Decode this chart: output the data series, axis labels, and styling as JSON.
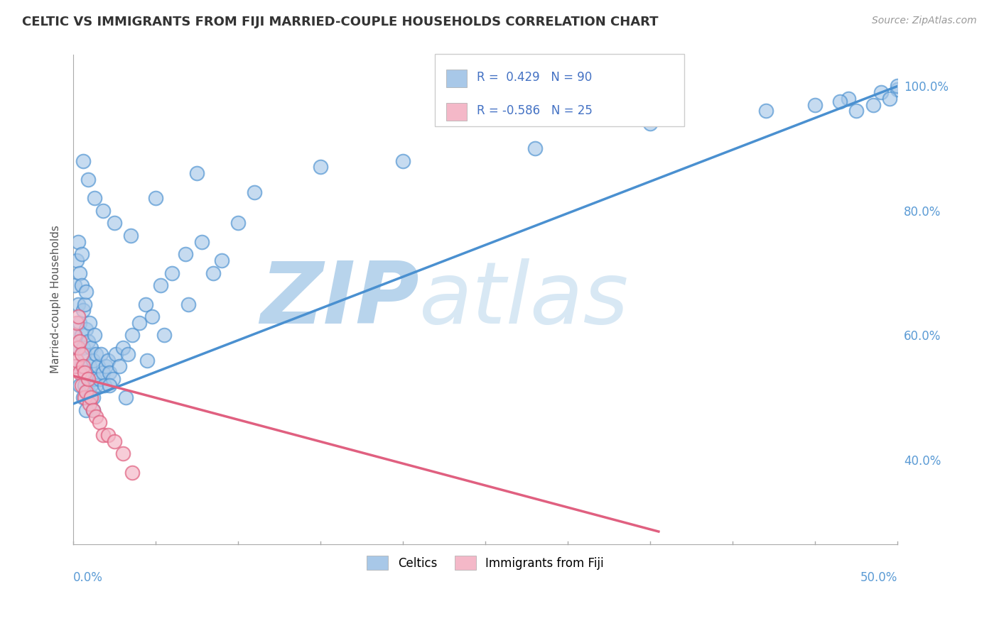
{
  "title": "CELTIC VS IMMIGRANTS FROM FIJI MARRIED-COUPLE HOUSEHOLDS CORRELATION CHART",
  "source": "Source: ZipAtlas.com",
  "ylabel": "Married-couple Households",
  "ylabel_right_ticks": [
    "100.0%",
    "80.0%",
    "60.0%",
    "40.0%"
  ],
  "ylabel_right_vals": [
    1.0,
    0.8,
    0.6,
    0.4
  ],
  "celtics_color": "#a8c8e8",
  "fiji_color": "#f4b8c8",
  "line_celtics_color": "#4a90d0",
  "line_fiji_color": "#e06080",
  "watermark_zip": "ZIP",
  "watermark_atlas": "atlas",
  "watermark_color": "#dce8f4",
  "celtics_scatter_x": [
    0.001,
    0.001,
    0.002,
    0.002,
    0.003,
    0.003,
    0.003,
    0.004,
    0.004,
    0.004,
    0.005,
    0.005,
    0.005,
    0.005,
    0.006,
    0.006,
    0.006,
    0.007,
    0.007,
    0.007,
    0.008,
    0.008,
    0.008,
    0.008,
    0.009,
    0.009,
    0.01,
    0.01,
    0.01,
    0.011,
    0.011,
    0.012,
    0.012,
    0.013,
    0.013,
    0.014,
    0.014,
    0.015,
    0.016,
    0.017,
    0.018,
    0.019,
    0.02,
    0.021,
    0.022,
    0.024,
    0.026,
    0.028,
    0.03,
    0.033,
    0.036,
    0.04,
    0.044,
    0.048,
    0.053,
    0.06,
    0.068,
    0.078,
    0.09,
    0.1,
    0.012,
    0.022,
    0.032,
    0.045,
    0.055,
    0.07,
    0.085,
    0.006,
    0.009,
    0.013,
    0.018,
    0.025,
    0.035,
    0.05,
    0.075,
    0.11,
    0.15,
    0.2,
    0.28,
    0.35,
    0.42,
    0.45,
    0.47,
    0.49,
    0.5,
    0.5,
    0.495,
    0.485,
    0.475,
    0.465
  ],
  "celtics_scatter_y": [
    0.6,
    0.68,
    0.55,
    0.72,
    0.58,
    0.65,
    0.75,
    0.52,
    0.62,
    0.7,
    0.55,
    0.6,
    0.68,
    0.73,
    0.5,
    0.58,
    0.64,
    0.52,
    0.57,
    0.65,
    0.48,
    0.54,
    0.61,
    0.67,
    0.51,
    0.59,
    0.5,
    0.55,
    0.62,
    0.52,
    0.58,
    0.5,
    0.56,
    0.53,
    0.6,
    0.52,
    0.57,
    0.55,
    0.53,
    0.57,
    0.54,
    0.52,
    0.55,
    0.56,
    0.54,
    0.53,
    0.57,
    0.55,
    0.58,
    0.57,
    0.6,
    0.62,
    0.65,
    0.63,
    0.68,
    0.7,
    0.73,
    0.75,
    0.72,
    0.78,
    0.48,
    0.52,
    0.5,
    0.56,
    0.6,
    0.65,
    0.7,
    0.88,
    0.85,
    0.82,
    0.8,
    0.78,
    0.76,
    0.82,
    0.86,
    0.83,
    0.87,
    0.88,
    0.9,
    0.94,
    0.96,
    0.97,
    0.98,
    0.99,
    0.995,
    1.0,
    0.98,
    0.97,
    0.96,
    0.975
  ],
  "fiji_scatter_x": [
    0.001,
    0.001,
    0.002,
    0.002,
    0.003,
    0.003,
    0.004,
    0.004,
    0.005,
    0.005,
    0.006,
    0.007,
    0.007,
    0.008,
    0.009,
    0.01,
    0.011,
    0.012,
    0.014,
    0.016,
    0.018,
    0.021,
    0.025,
    0.03,
    0.036
  ],
  "fiji_scatter_y": [
    0.6,
    0.55,
    0.62,
    0.56,
    0.58,
    0.63,
    0.54,
    0.59,
    0.52,
    0.57,
    0.55,
    0.5,
    0.54,
    0.51,
    0.53,
    0.49,
    0.5,
    0.48,
    0.47,
    0.46,
    0.44,
    0.44,
    0.43,
    0.41,
    0.38
  ],
  "celtics_line_x": [
    0.0,
    0.5
  ],
  "celtics_line_y": [
    0.49,
    1.0
  ],
  "fiji_line_x": [
    0.0,
    0.355
  ],
  "fiji_line_y": [
    0.535,
    0.285
  ],
  "xmin": 0.0,
  "xmax": 0.5,
  "ymin": 0.265,
  "ymax": 1.05,
  "background_color": "#ffffff",
  "grid_color": "#cccccc",
  "grid_linestyle": "--"
}
